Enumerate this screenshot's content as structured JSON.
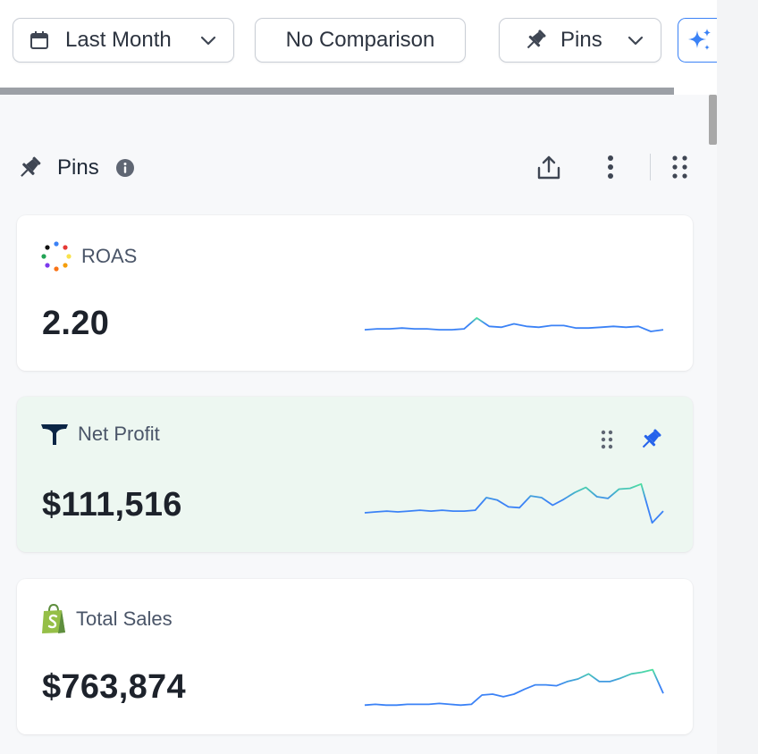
{
  "toolbar": {
    "date_range": {
      "label": "Last Month",
      "icon": "calendar-icon"
    },
    "comparison": {
      "label": "No Comparison"
    },
    "pins": {
      "label": "Pins",
      "icon": "pin-icon"
    },
    "ai": {
      "icon": "sparkle-icon",
      "color": "#3b82f6"
    },
    "progress_fraction": 1.0
  },
  "section": {
    "title": "Pins",
    "icons": [
      "info-icon",
      "share-icon",
      "more-vertical-icon",
      "drag-grid-icon"
    ]
  },
  "colors": {
    "accent": "#3b82f6",
    "spark_start": "#3b82f6",
    "spark_end": "#4ee0a0",
    "active_card_bg": "#edf7f1"
  },
  "cards": [
    {
      "title": "ROAS",
      "value": "2.20",
      "icon": "roas-dots-icon",
      "active": false,
      "spark": [
        20,
        21,
        21,
        22,
        21,
        21,
        20,
        20,
        21,
        34,
        24,
        23,
        27,
        24,
        23,
        25,
        25,
        22,
        22,
        23,
        24,
        23,
        24,
        18,
        20
      ]
    },
    {
      "title": "Net Profit",
      "value": "$111,516",
      "icon": "whale-logo-icon",
      "active": true,
      "spark": [
        18,
        19,
        20,
        19,
        20,
        21,
        20,
        21,
        20,
        20,
        21,
        36,
        33,
        25,
        24,
        38,
        36,
        27,
        34,
        42,
        48,
        37,
        35,
        46,
        47,
        52,
        6,
        20
      ]
    },
    {
      "title": "Total Sales",
      "value": "$763,874",
      "icon": "shopify-bag-icon",
      "active": false,
      "spark": [
        6,
        7,
        6,
        6,
        7,
        7,
        7,
        8,
        7,
        6,
        7,
        18,
        19,
        16,
        19,
        25,
        30,
        30,
        29,
        34,
        37,
        43,
        34,
        34,
        38,
        43,
        45,
        48,
        20
      ]
    }
  ]
}
